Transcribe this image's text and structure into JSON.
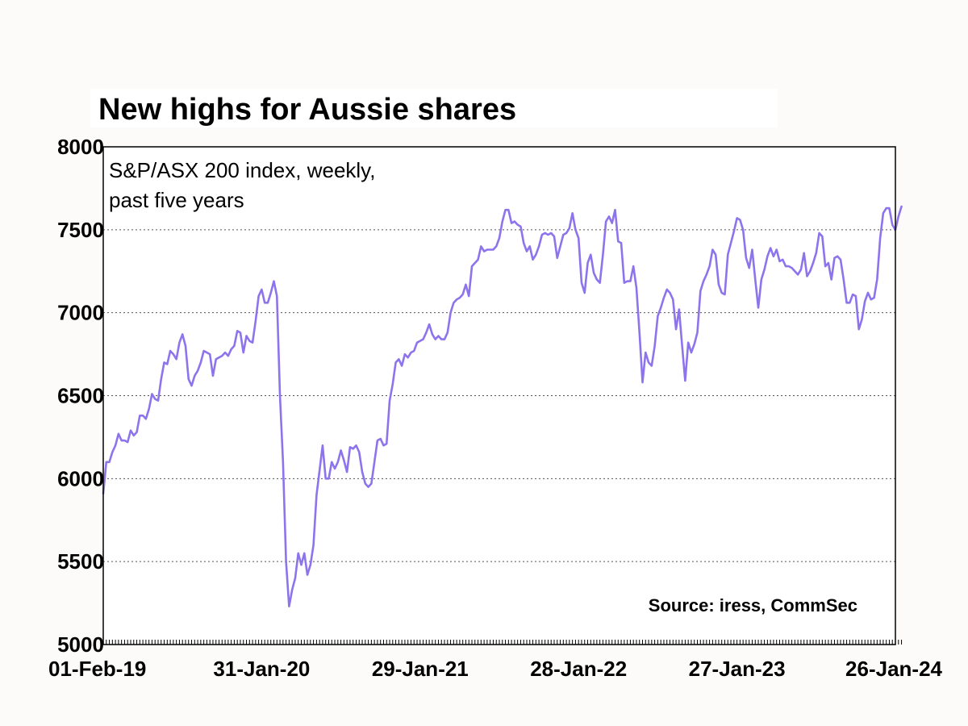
{
  "chart_data": {
    "type": "line",
    "title": "New highs for Aussie shares",
    "annotation_lines": [
      "S&P/ASX 200 index, weekly,",
      "past five years"
    ],
    "source": "Source: iress, CommSec",
    "xlabel": "",
    "ylabel": "",
    "ylim": [
      5000,
      8000
    ],
    "yticks": [
      5000,
      5500,
      6000,
      6500,
      7000,
      7500,
      8000
    ],
    "ytick_labels": [
      "5000",
      "5500",
      "6000",
      "6500",
      "7000",
      "7500",
      "8000"
    ],
    "xlim": [
      0,
      260
    ],
    "xticks": [
      0,
      52,
      104,
      156,
      208,
      260
    ],
    "xtick_labels": [
      "01-Feb-19",
      "31-Jan-20",
      "29-Jan-21",
      "28-Jan-22",
      "27-Jan-23",
      "26-Jan-24"
    ],
    "grid": "horizontal-dotted",
    "series": [
      {
        "name": "S&P/ASX 200 index",
        "color": "#8e74ec",
        "values": [
          5910,
          6100,
          6100,
          6160,
          6200,
          6270,
          6230,
          6230,
          6220,
          6290,
          6260,
          6280,
          6380,
          6380,
          6360,
          6420,
          6510,
          6480,
          6470,
          6600,
          6700,
          6690,
          6770,
          6750,
          6720,
          6820,
          6870,
          6800,
          6600,
          6560,
          6620,
          6650,
          6700,
          6770,
          6760,
          6750,
          6620,
          6720,
          6730,
          6740,
          6760,
          6740,
          6780,
          6800,
          6890,
          6880,
          6760,
          6860,
          6830,
          6820,
          6950,
          7100,
          7140,
          7060,
          7060,
          7120,
          7190,
          7100,
          6500,
          6100,
          5500,
          5230,
          5330,
          5400,
          5550,
          5480,
          5550,
          5420,
          5480,
          5600,
          5900,
          6050,
          6200,
          6000,
          6000,
          6100,
          6060,
          6100,
          6170,
          6110,
          6040,
          6190,
          6180,
          6200,
          6160,
          6040,
          5970,
          5950,
          5970,
          6100,
          6230,
          6240,
          6200,
          6210,
          6470,
          6570,
          6700,
          6720,
          6680,
          6750,
          6730,
          6760,
          6770,
          6820,
          6830,
          6840,
          6880,
          6930,
          6870,
          6840,
          6860,
          6840,
          6840,
          6880,
          7000,
          7060,
          7080,
          7090,
          7110,
          7170,
          7100,
          7280,
          7300,
          7320,
          7400,
          7370,
          7380,
          7380,
          7380,
          7400,
          7450,
          7550,
          7620,
          7620,
          7540,
          7550,
          7530,
          7520,
          7420,
          7370,
          7400,
          7320,
          7350,
          7400,
          7470,
          7480,
          7470,
          7480,
          7460,
          7330,
          7400,
          7470,
          7480,
          7510,
          7600,
          7500,
          7450,
          7180,
          7120,
          7300,
          7350,
          7240,
          7200,
          7180,
          7350,
          7550,
          7580,
          7540,
          7620,
          7430,
          7420,
          7180,
          7190,
          7190,
          7280,
          7150,
          6880,
          6580,
          6760,
          6700,
          6680,
          6800,
          6980,
          7030,
          7090,
          7140,
          7120,
          7080,
          6900,
          7020,
          6800,
          6590,
          6820,
          6760,
          6810,
          6880,
          7130,
          7190,
          7230,
          7280,
          7380,
          7350,
          7170,
          7120,
          7110,
          7350,
          7420,
          7490,
          7570,
          7560,
          7500,
          7330,
          7270,
          7380,
          7200,
          7030,
          7200,
          7260,
          7340,
          7390,
          7340,
          7380,
          7310,
          7320,
          7280,
          7280,
          7270,
          7250,
          7230,
          7260,
          7360,
          7220,
          7250,
          7300,
          7360,
          7480,
          7460,
          7280,
          7300,
          7200,
          7330,
          7340,
          7320,
          7200,
          7060,
          7060,
          7110,
          7100,
          6900,
          6960,
          7070,
          7120,
          7080,
          7090,
          7200,
          7450,
          7600,
          7630,
          7630,
          7530,
          7500,
          7580,
          7640
        ]
      }
    ]
  }
}
